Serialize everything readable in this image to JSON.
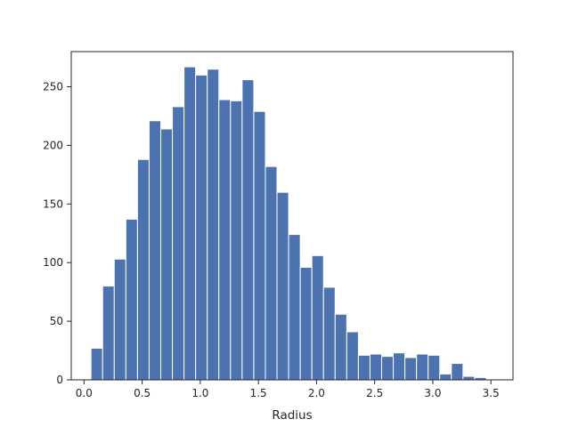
{
  "chart_data": {
    "type": "bar",
    "title": "",
    "xlabel": "Radius",
    "ylabel": "",
    "xlim": [
      -0.11,
      3.69
    ],
    "ylim": [
      0,
      280
    ],
    "x_ticks": [
      0.0,
      0.5,
      1.0,
      1.5,
      2.0,
      2.5,
      3.0,
      3.5
    ],
    "x_tick_labels": [
      "0.0",
      "0.5",
      "1.0",
      "1.5",
      "2.0",
      "2.5",
      "3.0",
      "3.5"
    ],
    "y_ticks": [
      0,
      50,
      100,
      150,
      200,
      250
    ],
    "y_tick_labels": [
      "0",
      "50",
      "100",
      "150",
      "200",
      "250"
    ],
    "grid": false,
    "bar_color": "#4c72b0",
    "bin_start": 0.06,
    "bin_width": 0.1,
    "values": [
      27,
      80,
      103,
      137,
      188,
      221,
      214,
      233,
      267,
      260,
      265,
      239,
      238,
      256,
      229,
      182,
      160,
      124,
      96,
      106,
      79,
      56,
      41,
      21,
      22,
      20,
      23,
      19,
      22,
      21,
      5,
      14,
      3,
      2
    ]
  }
}
